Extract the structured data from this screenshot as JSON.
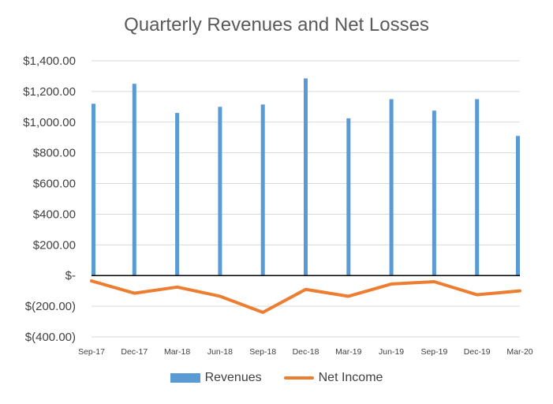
{
  "chart_data": {
    "type": "bar",
    "title": "Quarterly Revenues and Net Losses",
    "categories": [
      "Sep-17",
      "Dec-17",
      "Mar-18",
      "Jun-18",
      "Sep-18",
      "Dec-18",
      "Mar-19",
      "Jun-19",
      "Sep-19",
      "Dec-19",
      "Mar-20"
    ],
    "series": [
      {
        "name": "Revenues",
        "type": "bar",
        "color": "#5b9bd5",
        "values": [
          1120,
          1250,
          1060,
          1100,
          1115,
          1285,
          1025,
          1150,
          1075,
          1150,
          910
        ]
      },
      {
        "name": "Net Income",
        "type": "line",
        "color": "#ed7d31",
        "values": [
          -35,
          -115,
          -75,
          -135,
          -240,
          -90,
          -135,
          -55,
          -40,
          -125,
          -100
        ]
      }
    ],
    "yticks": [
      "$1,400.00",
      "$1,200.00",
      "$1,000.00",
      "$800.00",
      "$600.00",
      "$400.00",
      "$200.00",
      "$-",
      "$(200.00)",
      "$(400.00)"
    ],
    "ylim": [
      -400,
      1400
    ],
    "grid": true,
    "legend_position": "bottom"
  }
}
